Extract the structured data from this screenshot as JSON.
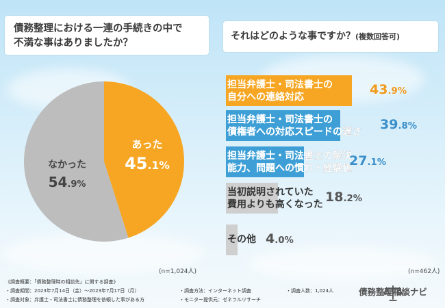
{
  "left_question": {
    "line1": "債務整理における一連の手続きの中で",
    "line2": "不満な事はありましたか？"
  },
  "right_question": {
    "text": "それはどのような事ですか？",
    "sub": "(複数回答可)"
  },
  "colors": {
    "orange": "#f6a623",
    "gray": "#bdbdbd",
    "blue": "#3d9fd6",
    "light_gray": "#cfcfcf",
    "orange_text": "#f19a1b",
    "blue_text": "#3a8ec9",
    "gray_text": "#555555"
  },
  "chart_data": [
    {
      "type": "pie",
      "title": "債務整理における一連の手続きの中で不満な事はありましたか？",
      "slices": [
        {
          "label": "あった",
          "value_text": "45",
          "decimal_text": ".1%",
          "value": 45.1,
          "color": "#f6a623"
        },
        {
          "label": "なかった",
          "value_text": "54",
          "decimal_text": ".9%",
          "value": 54.9,
          "color": "#bdbdbd"
        }
      ],
      "sample_note": "(n=1,024人)"
    },
    {
      "type": "bar",
      "title": "それはどのような事ですか？(複数回答可)",
      "categories": [
        [
          "担当弁護士・司法書士の",
          "自分への連絡対応"
        ],
        [
          "担当弁護士・司法書士の",
          "債権者への対応スピードの遅さ"
        ],
        [
          "担当弁護士・司法書士の解決",
          "能力、問題への慣れ・経験値"
        ],
        [
          "当初説明されていた",
          "費用よりも高くなった"
        ],
        [
          "その他",
          ""
        ]
      ],
      "value_texts": [
        {
          "int": "43",
          "dec": ".9%"
        },
        {
          "int": "39",
          "dec": ".8%"
        },
        {
          "int": "27",
          "dec": ".1%"
        },
        {
          "int": "18",
          "dec": ".2%"
        },
        {
          "int": "4",
          "dec": ".0%"
        }
      ],
      "values": [
        43.9,
        39.8,
        27.1,
        18.2,
        4.0
      ],
      "sample_note": "(n=462人)"
    }
  ],
  "footer": {
    "overview": "《調査概要：「債務整理時の相談先」に関する調査》",
    "period": "・調査期間：2023年7月14日（金）〜2023年7月17日（月）",
    "target": "・調査対象：弁護士・司法書士に債務整理を依頼した事がある方",
    "method": "・調査方法：インターネット調査",
    "provider": "・モニター提供元：ゼネラルリサーチ",
    "count": "・調査人数：1,024人",
    "logo_text": "債務整理相談ナビ"
  }
}
